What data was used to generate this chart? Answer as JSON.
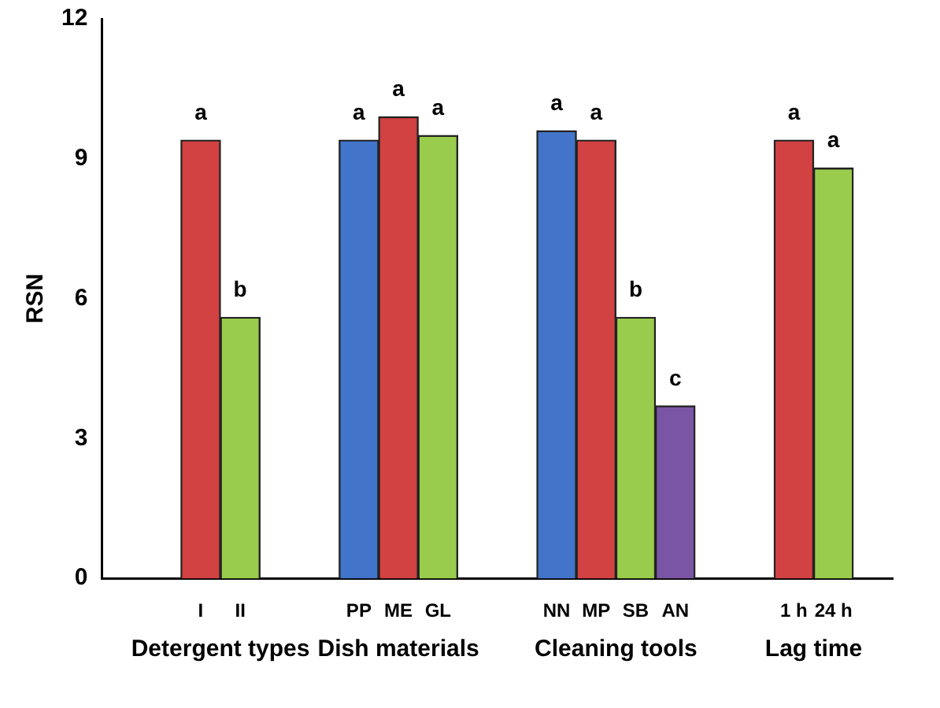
{
  "chart_data": {
    "type": "bar",
    "ylabel": "RSN",
    "categories": [
      null,
      null,
      "I",
      "II",
      null,
      null,
      "PP",
      "ME",
      "GL",
      null,
      null,
      "NN",
      "MP",
      "SB",
      "AN",
      null,
      null,
      "1 h",
      "24 h",
      null
    ],
    "values": [
      null,
      null,
      9.4,
      5.6,
      null,
      null,
      9.4,
      9.9,
      9.5,
      null,
      null,
      9.6,
      9.4,
      5.6,
      3.7,
      null,
      null,
      9.4,
      8.8,
      null
    ],
    "colors": [
      null,
      null,
      "#d24242",
      "#99cc4c",
      null,
      null,
      "#4275c9",
      "#d24242",
      "#99cc4c",
      null,
      null,
      "#4275c9",
      "#d24242",
      "#99cc4c",
      "#7a55a6",
      null,
      null,
      "#d24242",
      "#99cc4c",
      null
    ],
    "value_labels": [
      null,
      null,
      "a",
      "b",
      null,
      null,
      "a",
      "a",
      "a",
      null,
      null,
      "a",
      "a",
      "b",
      "c",
      null,
      null,
      "a",
      "a",
      null
    ],
    "annotations": [
      "Detergent types",
      "Dish materials",
      "Cleaning tools",
      "Lag time"
    ],
    "ylim": [
      0,
      12
    ],
    "yticks": [
      0,
      3,
      6,
      9,
      12
    ],
    "grid": false
  }
}
